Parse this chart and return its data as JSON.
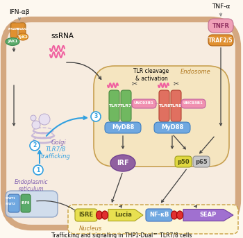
{
  "bg_color": "#fdf8f0",
  "title": "Trafficking and signaling in THP1-Dual™ TLR7/8 cells",
  "ifn_label": "IFN-αβ",
  "tnf_label": "TNF-α",
  "ssrna_label": "ssRNA",
  "tlr_cleavage_label": "TLR cleavage\n& activation",
  "endosome_label": "Endosome",
  "nucleus_label": "Nucleus",
  "golgi_label": "Golgi",
  "er_label": "Endoplasmic\nreticulum",
  "trafficking_label": "TLR7/8\ntrafficking",
  "cell_fill": "#f7ece0",
  "cell_edge": "#d4a880",
  "endo_fill": "#f5e5c0",
  "endo_edge": "#c8a050",
  "nucleus_fill": "#fdf5d8",
  "nucleus_edge": "#c8a040",
  "ifn_receptor_color": "#e09030",
  "jak1_color": "#5aaa6a",
  "tyk2_color": "#e8a030",
  "tnfr_color": "#f0a0b8",
  "traf_color": "#e09030",
  "tlr7_color": "#70b860",
  "tlr8_color": "#e07060",
  "myd88_color": "#70a8e0",
  "unc93_color": "#f090b0",
  "irf_color": "#9060a0",
  "p50_color": "#e0d840",
  "p65_color": "#c8c8c8",
  "isre_color": "#e8e050",
  "lucia_color": "#e8e050",
  "nfkb_color": "#70a8e0",
  "seap_color": "#a070d0",
  "red_connector": "#e03030",
  "arrow_dark": "#404040",
  "arrow_blue": "#30a0e0",
  "ssrna_color": "#f060a0",
  "er_box_color": "#a0c0e8",
  "er_box_edge": "#6090c0",
  "stat1_color": "#70a8e0",
  "irf9_color": "#5aaa6a"
}
